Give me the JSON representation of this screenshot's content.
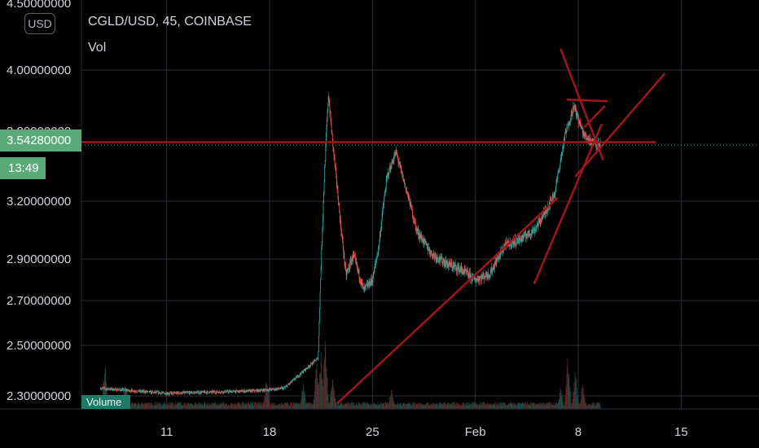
{
  "header": {
    "symbol_line": "CGLD/USD, 45, COINBASE",
    "indicator": "Vol"
  },
  "currency_button": "USD",
  "last_price_label": "3.54280000",
  "countdown_label": "13:49",
  "volume_label": "Volume",
  "colors": {
    "background": "#000000",
    "up": "#26a69a",
    "down": "#ef5350",
    "drawing": "#a0161c",
    "price_tag": "#5aa979",
    "axis_text": "#d1d4dc",
    "grid": "#2a2e39"
  },
  "chart_data": {
    "type": "candlestick",
    "title": "CGLD/USD, 45, COINBASE",
    "y_axis": {
      "ticks": [
        "2.30000000",
        "2.50000000",
        "2.70000000",
        "2.90000000",
        "3.20000000",
        "4.00000000"
      ],
      "tick_values": [
        2.3,
        2.5,
        2.7,
        2.9,
        3.2,
        4.0
      ],
      "partially_visible": [
        "4.50000000",
        "3.80000000"
      ]
    },
    "x_axis": {
      "ticks": [
        "11",
        "18",
        "25",
        "Feb",
        "8",
        "15"
      ],
      "tick_days": [
        11,
        18,
        25,
        32,
        39,
        46
      ]
    },
    "x_range_days": [
      5.2,
      51.3
    ],
    "last_price": 3.5428,
    "price_path": [
      [
        6.5,
        2.33
      ],
      [
        11,
        2.31
      ],
      [
        17,
        2.32
      ],
      [
        19,
        2.33
      ],
      [
        21.3,
        2.45
      ],
      [
        21.8,
        3.5
      ],
      [
        22.0,
        3.85
      ],
      [
        22.3,
        3.55
      ],
      [
        22.8,
        3.1
      ],
      [
        23.2,
        2.82
      ],
      [
        23.7,
        2.92
      ],
      [
        24.4,
        2.75
      ],
      [
        25.0,
        2.8
      ],
      [
        25.4,
        2.95
      ],
      [
        26.0,
        3.35
      ],
      [
        26.6,
        3.5
      ],
      [
        27.2,
        3.3
      ],
      [
        28.0,
        3.05
      ],
      [
        29.0,
        2.93
      ],
      [
        30.0,
        2.88
      ],
      [
        31.0,
        2.85
      ],
      [
        32.0,
        2.8
      ],
      [
        33.0,
        2.83
      ],
      [
        34.0,
        2.97
      ],
      [
        35.0,
        3.0
      ],
      [
        36.0,
        3.05
      ],
      [
        36.8,
        3.15
      ],
      [
        37.4,
        3.25
      ],
      [
        38.1,
        3.6
      ],
      [
        38.7,
        3.78
      ],
      [
        39.4,
        3.6
      ],
      [
        40.2,
        3.55
      ],
      [
        40.5,
        3.5428
      ]
    ],
    "volume_scale_max": 1.0,
    "volume_spikes": [
      [
        5.8,
        0.9
      ],
      [
        6.8,
        0.7
      ],
      [
        8.2,
        0.4
      ],
      [
        17.8,
        0.45
      ],
      [
        20.3,
        0.35
      ],
      [
        21.2,
        0.65
      ],
      [
        21.5,
        0.85
      ],
      [
        21.8,
        1.0
      ],
      [
        22.3,
        0.5
      ],
      [
        26.3,
        0.3
      ],
      [
        37.8,
        0.3
      ],
      [
        38.3,
        0.75
      ],
      [
        38.8,
        0.55
      ],
      [
        39.3,
        0.35
      ]
    ]
  },
  "drawings": {
    "horizontal_level": {
      "price": 3.56,
      "from_day": 5.2,
      "to_day": 44.3
    },
    "trend_lines": [
      {
        "from": [
          22.6,
          2.27
        ],
        "to": [
          37.6,
          3.22
        ]
      },
      {
        "from": [
          36.0,
          2.78
        ],
        "to": [
          40.6,
          3.67
        ]
      },
      {
        "from": [
          37.8,
          4.13
        ],
        "to": [
          40.7,
          3.45
        ]
      },
      {
        "from": [
          38.2,
          3.82
        ],
        "to": [
          41.0,
          3.81
        ]
      },
      {
        "from": [
          39.4,
          3.65
        ],
        "to": [
          40.8,
          3.78
        ]
      },
      {
        "from": [
          38.8,
          3.35
        ],
        "to": [
          44.9,
          3.98
        ]
      }
    ]
  }
}
